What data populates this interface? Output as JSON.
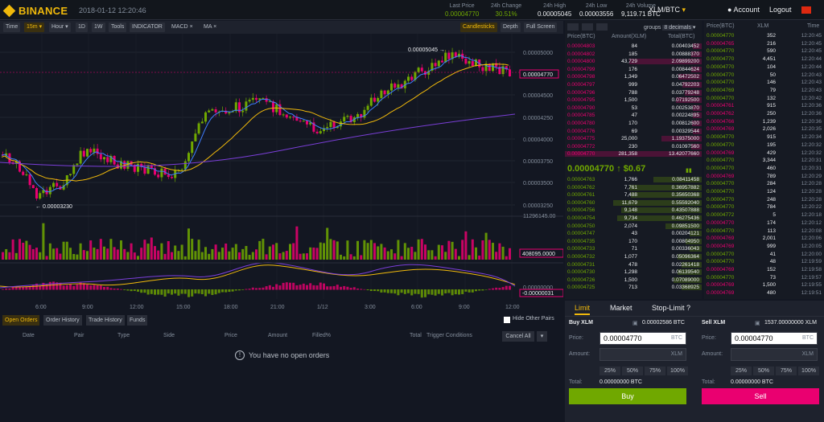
{
  "header": {
    "brand": "BINANCE",
    "datetime": "2018-01-12 12:20:46",
    "last_price_label": "Last Price",
    "last_price": "0.00004770",
    "change_label": "24h Change",
    "change": "30.51%",
    "high_label": "24h High",
    "high": "0.00005045",
    "low_label": "24h Low",
    "low": "0.00003556",
    "volume_label": "24h Volume",
    "volume": "9,119.71 BTC",
    "pair": "XLM/BTC",
    "account": "Account",
    "logout": "Logout"
  },
  "toolbar": {
    "time": "Time",
    "interval": "15m",
    "hour": "Hour",
    "d1": "1D",
    "w1": "1W",
    "tools": "Tools",
    "indicator": "INDICATOR",
    "macd": "MACD",
    "ma": "MA",
    "candlesticks": "Candlesticks",
    "depth": "Depth",
    "fullscreen": "Full Screen"
  },
  "chart_data": {
    "type": "candlestick",
    "y_ticks": [
      "0.00005000",
      "0.00004500",
      "0.00004250",
      "0.00004000",
      "0.00003750",
      "0.00003500",
      "0.00003250"
    ],
    "x_ticks": [
      "6:00",
      "9:00",
      "12:00",
      "15:00",
      "18:00",
      "21:00",
      "1/12",
      "3:00",
      "6:00",
      "9:00",
      "12:00"
    ],
    "high_label": "0.00005045",
    "low_label": "0.00003230",
    "last_label": "0.00004770",
    "volume_max": "11296145.00",
    "volume_last": "408095.0000",
    "macd_zero": "0.00000000",
    "macd_last": "-0.00000031"
  },
  "orders": {
    "tabs": [
      "Open Orders",
      "Order History",
      "Trade History",
      "Funds"
    ],
    "hide_pairs": "Hide Other Pairs",
    "cols": [
      "Date",
      "Pair",
      "Type",
      "Side",
      "Price",
      "Amount",
      "Filled%",
      "Total",
      "Trigger Conditions"
    ],
    "cancel_all": "Cancel All",
    "empty": "You have no open orders"
  },
  "orderbook": {
    "groups": "groups",
    "decimals": "8 decimals",
    "col_price": "Price(BTC)",
    "col_amount": "Amount(XLM)",
    "col_total": "Total(BTC)",
    "asks": [
      [
        "0.00004803",
        "84",
        "0.00403452"
      ],
      [
        "0.00004802",
        "185",
        "0.00888370"
      ],
      [
        "0.00004800",
        "43,729",
        "2.09899200"
      ],
      [
        "0.00004799",
        "176",
        "0.00844624"
      ],
      [
        "0.00004798",
        "1,349",
        "0.06472502"
      ],
      [
        "0.00004797",
        "999",
        "0.04792203"
      ],
      [
        "0.00004796",
        "788",
        "0.03779248"
      ],
      [
        "0.00004795",
        "1,500",
        "0.07192500"
      ],
      [
        "0.00004790",
        "53",
        "0.00253870"
      ],
      [
        "0.00004785",
        "47",
        "0.00224895"
      ],
      [
        "0.00004780",
        "170",
        "0.00812600"
      ],
      [
        "0.00004776",
        "69",
        "0.00329544"
      ],
      [
        "0.00004775",
        "25,000",
        "1.19375000"
      ],
      [
        "0.00004772",
        "230",
        "0.01097560"
      ],
      [
        "0.00004770",
        "281,358",
        "13.42077660"
      ]
    ],
    "last_price": "0.00004770",
    "last_usd": "$0.67",
    "bids": [
      [
        "0.00004763",
        "1,766",
        "0.08411458"
      ],
      [
        "0.00004762",
        "7,761",
        "0.36957882"
      ],
      [
        "0.00004761",
        "7,488",
        "0.35650368"
      ],
      [
        "0.00004760",
        "11,679",
        "0.55592040"
      ],
      [
        "0.00004756",
        "9,148",
        "0.43507888"
      ],
      [
        "0.00004754",
        "9,734",
        "0.46275436"
      ],
      [
        "0.00004750",
        "2,074",
        "0.09851500"
      ],
      [
        "0.00004747",
        "43",
        "0.00204121"
      ],
      [
        "0.00004735",
        "170",
        "0.00804950"
      ],
      [
        "0.00004733",
        "71",
        "0.00336043"
      ],
      [
        "0.00004732",
        "1,077",
        "0.05096364"
      ],
      [
        "0.00004731",
        "478",
        "0.02261418"
      ],
      [
        "0.00004730",
        "1,298",
        "0.06139540"
      ],
      [
        "0.00004726",
        "1,500",
        "0.07089000"
      ],
      [
        "0.00004725",
        "713",
        "0.03368925"
      ]
    ]
  },
  "trades": {
    "col_price": "Price(BTC)",
    "col_amount": "XLM",
    "rows": [
      [
        "0.00004770",
        "352",
        "12:20:45",
        "g"
      ],
      [
        "0.00004765",
        "216",
        "12:20:45",
        "r"
      ],
      [
        "0.00004770",
        "590",
        "12:20:45",
        "g"
      ],
      [
        "0.00004770",
        "4,451",
        "12:20:44",
        "g"
      ],
      [
        "0.00004770",
        "104",
        "12:20:44",
        "g"
      ],
      [
        "0.00004770",
        "50",
        "12:20:43",
        "g"
      ],
      [
        "0.00004770",
        "146",
        "12:20:43",
        "g"
      ],
      [
        "0.00004769",
        "79",
        "12:20:43",
        "g"
      ],
      [
        "0.00004770",
        "132",
        "12:20:42",
        "g"
      ],
      [
        "0.00004761",
        "915",
        "12:20:36",
        "r"
      ],
      [
        "0.00004762",
        "250",
        "12:20:36",
        "r"
      ],
      [
        "0.00004766",
        "1,239",
        "12:20:36",
        "r"
      ],
      [
        "0.00004769",
        "2,026",
        "12:20:35",
        "r"
      ],
      [
        "0.00004770",
        "915",
        "12:20:34",
        "g"
      ],
      [
        "0.00004770",
        "195",
        "12:20:32",
        "g"
      ],
      [
        "0.00004769",
        "429",
        "12:20:32",
        "r"
      ],
      [
        "0.00004770",
        "3,344",
        "12:20:31",
        "g"
      ],
      [
        "0.00004770",
        "460",
        "12:20:31",
        "g"
      ],
      [
        "0.00004769",
        "789",
        "12:20:29",
        "r"
      ],
      [
        "0.00004770",
        "284",
        "12:20:28",
        "g"
      ],
      [
        "0.00004770",
        "124",
        "12:20:28",
        "g"
      ],
      [
        "0.00004770",
        "248",
        "12:20:28",
        "g"
      ],
      [
        "0.00004770",
        "784",
        "12:20:22",
        "g"
      ],
      [
        "0.00004772",
        "5",
        "12:20:18",
        "g"
      ],
      [
        "0.00004770",
        "174",
        "12:20:12",
        "r"
      ],
      [
        "0.00004770",
        "113",
        "12:20:08",
        "g"
      ],
      [
        "0.00004769",
        "2,001",
        "12:20:06",
        "r"
      ],
      [
        "0.00004769",
        "999",
        "12:20:05",
        "r"
      ],
      [
        "0.00004770",
        "41",
        "12:20:00",
        "g"
      ],
      [
        "0.00004770",
        "48",
        "12:19:59",
        "g"
      ],
      [
        "0.00004769",
        "152",
        "12:19:58",
        "r"
      ],
      [
        "0.00004770",
        "73",
        "12:19:57",
        "g"
      ],
      [
        "0.00004769",
        "1,500",
        "12:19:55",
        "r"
      ],
      [
        "0.00004769",
        "480",
        "12:19:51",
        "r"
      ]
    ]
  },
  "form": {
    "tab_limit": "Limit",
    "tab_market": "Market",
    "tab_stop": "Stop-Limit",
    "buy_title": "Buy XLM",
    "buy_bal": "0.00002586 BTC",
    "sell_title": "Sell XLM",
    "sell_bal": "1537.00000000 XLM",
    "price_label": "Price:",
    "amount_label": "Amount:",
    "total_label": "Total:",
    "buy_price": "0.00004770",
    "sell_price": "0.00004770",
    "btc": "BTC",
    "xlm": "XLM",
    "pcts": [
      "25%",
      "50%",
      "75%",
      "100%"
    ],
    "buy_total": "0.00000000 BTC",
    "sell_total": "0.00000000 BTC",
    "buy_btn": "Buy",
    "sell_btn": "Sell"
  },
  "colors": {
    "up": "#70a800",
    "down": "#ea0070",
    "brand": "#f0b90b"
  }
}
